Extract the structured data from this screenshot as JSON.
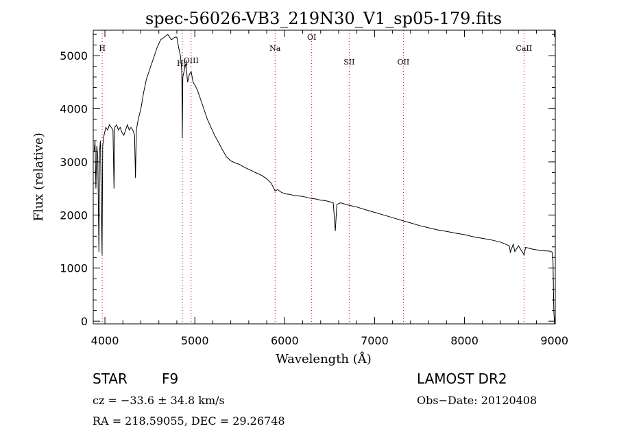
{
  "chart_data": {
    "type": "line",
    "title": "spec-56026-VB3_219N30_V1_sp05-179.fits",
    "xlabel": "Wavelength (Å)",
    "ylabel": "Flux (relative)",
    "xlim": [
      3870,
      9010
    ],
    "ylim": [
      -50,
      5480
    ],
    "xticks": [
      "4000",
      "5000",
      "6000",
      "7000",
      "8000",
      "9000"
    ],
    "yticks": [
      "0",
      "1000",
      "2000",
      "3000",
      "4000",
      "5000"
    ],
    "xtick_values": [
      4000,
      5000,
      6000,
      7000,
      8000,
      9000
    ],
    "ytick_values": [
      0,
      1000,
      2000,
      3000,
      4000,
      5000
    ],
    "grid": false,
    "line_colors": {
      "spectrum": "#000000",
      "lines": "#cc0000",
      "markers": "#000000"
    },
    "series": [
      {
        "x": [
          3880,
          3890,
          3900,
          3910,
          3920,
          3933,
          3940,
          3950,
          3968,
          3975,
          3990,
          4010,
          4030,
          4050,
          4070,
          4090,
          4101,
          4110,
          4130,
          4150,
          4170,
          4190,
          4210,
          4230,
          4250,
          4270,
          4290,
          4310,
          4330,
          4340,
          4350,
          4370,
          4400,
          4430,
          4460,
          4500,
          4540,
          4580,
          4620,
          4660,
          4700,
          4740,
          4780,
          4800,
          4820,
          4840,
          4855,
          4861,
          4867,
          4880,
          4900,
          4920,
          4940,
          4960,
          4980,
          5000,
          5030,
          5060,
          5100,
          5140,
          5180,
          5220,
          5260,
          5300,
          5350,
          5400,
          5450,
          5500,
          5550,
          5600,
          5650,
          5700,
          5750,
          5800,
          5850,
          5893,
          5920,
          5960,
          6000,
          6050,
          6100,
          6150,
          6200,
          6250,
          6300,
          6350,
          6400,
          6450,
          6500,
          6540,
          6563,
          6580,
          6620,
          6700,
          6800,
          6900,
          7000,
          7100,
          7200,
          7300,
          7400,
          7500,
          7600,
          7700,
          7800,
          7900,
          8000,
          8100,
          8200,
          8300,
          8400,
          8498,
          8510,
          8542,
          8560,
          8600,
          8662,
          8680,
          8750,
          8850,
          8950,
          8975,
          8985,
          8993,
          9000
        ],
        "y": [
          3200,
          3400,
          2500,
          3300,
          3100,
          1300,
          3200,
          3400,
          1250,
          3300,
          3500,
          3650,
          3600,
          3700,
          3650,
          3600,
          2500,
          3650,
          3700,
          3600,
          3650,
          3550,
          3500,
          3600,
          3700,
          3600,
          3650,
          3600,
          3500,
          2700,
          3600,
          3800,
          4000,
          4300,
          4550,
          4750,
          4950,
          5150,
          5300,
          5350,
          5400,
          5300,
          5350,
          5350,
          5150,
          5000,
          4700,
          3450,
          4600,
          4700,
          4850,
          4500,
          4650,
          4700,
          4500,
          4450,
          4350,
          4200,
          4000,
          3800,
          3650,
          3500,
          3380,
          3250,
          3100,
          3020,
          2980,
          2950,
          2900,
          2860,
          2820,
          2780,
          2740,
          2680,
          2600,
          2450,
          2480,
          2430,
          2400,
          2390,
          2370,
          2360,
          2350,
          2330,
          2310,
          2300,
          2280,
          2270,
          2250,
          2230,
          1700,
          2200,
          2230,
          2190,
          2150,
          2100,
          2050,
          2000,
          1950,
          1900,
          1850,
          1800,
          1760,
          1720,
          1690,
          1660,
          1630,
          1590,
          1560,
          1530,
          1490,
          1420,
          1300,
          1450,
          1310,
          1420,
          1250,
          1390,
          1360,
          1330,
          1320,
          1300,
          1100,
          200,
          0
        ]
      }
    ],
    "lines": [
      {
        "label": "H",
        "x": 3970
      },
      {
        "label": "Hβ",
        "x": 4861
      },
      {
        "label": "OIII",
        "x": 4959
      },
      {
        "label": "Na",
        "x": 5893
      },
      {
        "label": "OI",
        "x": 6300
      },
      {
        "label": "SII",
        "x": 6717
      },
      {
        "label": "OII",
        "x": 7320
      },
      {
        "label": "CaII",
        "x": 8662
      }
    ]
  },
  "footer": {
    "object_type": "STAR",
    "spectral_class": "F9",
    "survey": "LAMOST DR2",
    "redshift_line": "cz = −33.6 ± 34.8 km/s",
    "obs_date": "Obs−Date: 20120408",
    "coords": "RA = 218.59055, DEC =  29.26748"
  }
}
